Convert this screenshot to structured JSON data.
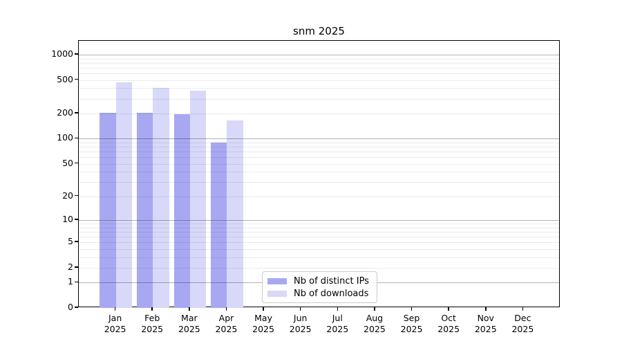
{
  "chart_data": {
    "type": "bar",
    "title": "snm 2025",
    "categories": [
      "Jan",
      "Feb",
      "Mar",
      "Apr",
      "May",
      "Jun",
      "Jul",
      "Aug",
      "Sep",
      "Oct",
      "Nov",
      "Dec"
    ],
    "category_year": "2025",
    "series": [
      {
        "name": "Nb of distinct IPs",
        "color": "#a8a8f2",
        "values": [
          205,
          205,
          195,
          90,
          null,
          null,
          null,
          null,
          null,
          null,
          null,
          null
        ]
      },
      {
        "name": "Nb of downloads",
        "color": "#d8d8f8",
        "values": [
          465,
          405,
          375,
          165,
          null,
          null,
          null,
          null,
          null,
          null,
          null,
          null
        ]
      }
    ],
    "y_ticks": [
      0,
      1,
      2,
      5,
      10,
      20,
      50,
      100,
      200,
      500,
      1000
    ],
    "y_scale": "log1p",
    "ylim": [
      0,
      1460
    ],
    "grid": {
      "major_lines": [
        1,
        10,
        100,
        1000
      ],
      "major_color": "#b0b0b0",
      "minor_color": "#ebebeb",
      "minor_lines_per_decade": [
        2,
        3,
        4,
        5,
        6,
        7,
        8,
        9
      ]
    },
    "legend_position": "inside-bottom-center"
  }
}
